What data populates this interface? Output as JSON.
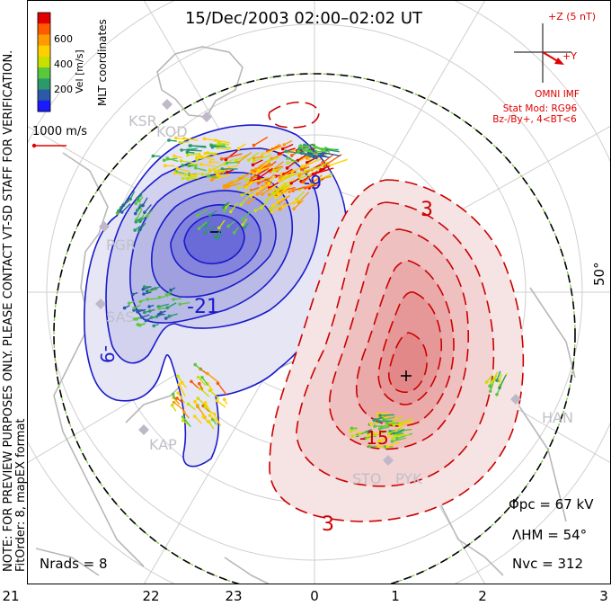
{
  "title": "15/Dec/2003 02:00–02:02 UT",
  "colorbar": {
    "label": "Vel [m/s]",
    "ticks": [
      "600",
      "400",
      "200"
    ],
    "colors": [
      "#e00000",
      "#ff5a00",
      "#ff9a00",
      "#ffd000",
      "#c8e000",
      "#5ac83c",
      "#2a9a6a",
      "#2a5aa8",
      "#1a1aff"
    ]
  },
  "coords_label": "MLT coordinates",
  "scale_label": "1000 m/s",
  "latitude_label": "50°",
  "note": "NOTE: FOR PREVIEW PURPOSES ONLY. PLEASE CONTACT VT-SD STAFF FOR VERIFICATION.",
  "fit_order": "FitOrder: 8, mapEX format",
  "imf": {
    "z_label": "+Z (5 nT)",
    "y_label": "+Y",
    "source": "OMNI IMF",
    "stat_mod": "Stat Mod: RG96",
    "condition": "Bz-/By+, 4<BT<6"
  },
  "stats": {
    "phi_pc": "Φpc = 67 kV",
    "lambda_hm": "ΛHM = 54°",
    "n_vc": "Nvc = 312",
    "n_rads": "Nrads = 8"
  },
  "stations": [
    "KSR",
    "KOD",
    "PGR",
    "SAS",
    "KAP",
    "STO",
    "PYK",
    "HAN"
  ],
  "contour_labels": [
    "-9",
    "-21",
    "-9",
    "3",
    "-15",
    "3"
  ],
  "mlt_ticks": [
    "21",
    "22",
    "23",
    "0",
    "1",
    "2",
    "3"
  ],
  "colors": {
    "negative": "#1a1acc",
    "positive": "#cc0000",
    "boundary": "#000000",
    "grid": "#cfcfcf"
  }
}
